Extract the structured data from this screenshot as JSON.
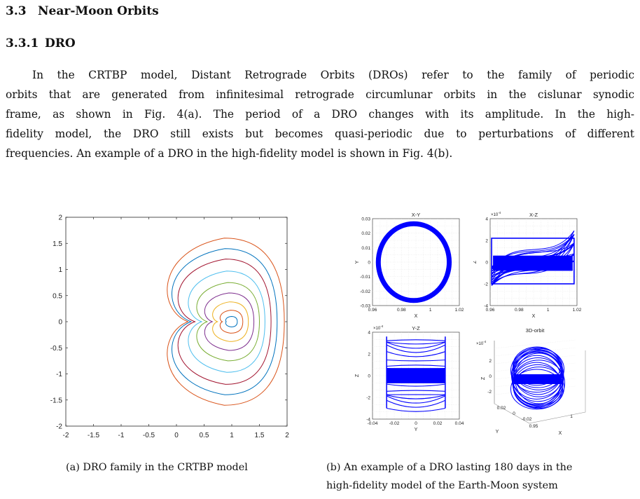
{
  "section": {
    "number": "3.3",
    "title": "Near-Moon Orbits"
  },
  "subsection": {
    "number": "3.3.1",
    "title": "DRO"
  },
  "paragraph_lines": [
    "In the CRTBP model, Distant Retrograde Orbits (DROs) refer to the family of periodic",
    "orbits that are generated from infinitesimal retrograde circumlunar orbits in the cislunar synodic",
    "frame, as shown in Fig. 4(a). The period of a DRO changes with its amplitude. In the high-",
    "fidelity model, the DRO still exists but becomes quasi-periodic due to perturbations of different",
    "frequencies. An example of a DRO in the high-fidelity model is shown in Fig. 4(b)."
  ],
  "caption_a": "(a) DRO family in the CRTBP model",
  "caption_b_lines": [
    "(b) An example of a DRO lasting 180 days in the",
    "high-fidelity model of the Earth-Moon system"
  ],
  "chart_data": [
    {
      "type": "line",
      "title": "",
      "xlabel": "",
      "ylabel": "",
      "xlim": [
        -2,
        2
      ],
      "ylim": [
        -2,
        2
      ],
      "xticks": [
        "-2",
        "-1.5",
        "-1",
        "-0.5",
        "0",
        "0.5",
        "1",
        "1.5",
        "2"
      ],
      "yticks": [
        "-2",
        "-1.5",
        "-1",
        "-0.5",
        "0",
        "0.5",
        "1",
        "1.5",
        "2"
      ],
      "grid": false,
      "center_x": 1,
      "series": [
        {
          "color": "#0072bd",
          "left_x": 0.9,
          "right_x": 1.1,
          "half_height": 0.1
        },
        {
          "color": "#d95319",
          "left_x": 0.78,
          "right_x": 1.2,
          "half_height": 0.22
        },
        {
          "color": "#edb120",
          "left_x": 0.62,
          "right_x": 1.3,
          "half_height": 0.38
        },
        {
          "color": "#7e2f8e",
          "left_x": 0.45,
          "right_x": 1.4,
          "half_height": 0.55
        },
        {
          "color": "#77ac30",
          "left_x": 0.28,
          "right_x": 1.5,
          "half_height": 0.75
        },
        {
          "color": "#4dbeee",
          "left_x": 0.1,
          "right_x": 1.6,
          "half_height": 0.97
        },
        {
          "color": "#a2142f",
          "left_x": -0.12,
          "right_x": 1.71,
          "half_height": 1.2
        },
        {
          "color": "#0072bd",
          "left_x": -0.25,
          "right_x": 1.82,
          "half_height": 1.4
        },
        {
          "color": "#d95319",
          "left_x": -0.35,
          "right_x": 1.95,
          "half_height": 1.6
        }
      ]
    },
    {
      "type": "scatter",
      "title": "X-Y",
      "xlabel": "X",
      "ylabel": "Y",
      "xlim": [
        0.96,
        1.02
      ],
      "ylim": [
        -0.03,
        0.03
      ],
      "xticks": [
        "0.96",
        "0.98",
        "1",
        "1.02"
      ],
      "yticks": [
        "0.03",
        "0.02",
        "0.01",
        "0",
        "-0.01",
        "-0.02",
        "-0.03"
      ],
      "color": "#0000ff",
      "ring": {
        "cx": 0.9885,
        "cy": 0.0,
        "rx": 0.0245,
        "ry": 0.0265
      }
    },
    {
      "type": "scatter",
      "title": "X-Z",
      "xlabel": "X",
      "ylabel": "Z",
      "exponent": "×10",
      "exponent_power": "-4",
      "xlim": [
        0.96,
        1.02
      ],
      "ylim": [
        -4,
        4
      ],
      "xticks": [
        "0.96",
        "0.98",
        "1",
        "1.02"
      ],
      "yticks": [
        "4",
        "2",
        "0",
        "-2",
        "-4"
      ],
      "color": "#0000ff",
      "x_range": [
        0.961,
        1.018
      ],
      "z_range": [
        -3.1,
        3.6
      ]
    },
    {
      "type": "scatter",
      "title": "Y-Z",
      "xlabel": "Y",
      "ylabel": "Z",
      "exponent": "×10",
      "exponent_power": "-4",
      "xlim": [
        -0.04,
        0.04
      ],
      "ylim": [
        -4,
        4
      ],
      "xticks": [
        "-0.04",
        "-0.02",
        "0",
        "0.02",
        "0.04"
      ],
      "yticks": [
        "4",
        "2",
        "0",
        "-2",
        "-4"
      ],
      "color": "#0000ff",
      "y_range": [
        -0.027,
        0.027
      ],
      "z_range": [
        -3.0,
        3.6
      ]
    },
    {
      "type": "scatter",
      "title": "3D-orbit",
      "xlabel": "X",
      "ylabel": "Y",
      "zlabel": "Z",
      "exponent": "×10",
      "exponent_power": "-4",
      "zticks": [
        "2",
        "0",
        "-2"
      ],
      "yticks": [
        "0.02",
        "0",
        "-0.02"
      ],
      "xticks": [
        "0.95",
        "1"
      ],
      "color": "#0000ff"
    }
  ]
}
